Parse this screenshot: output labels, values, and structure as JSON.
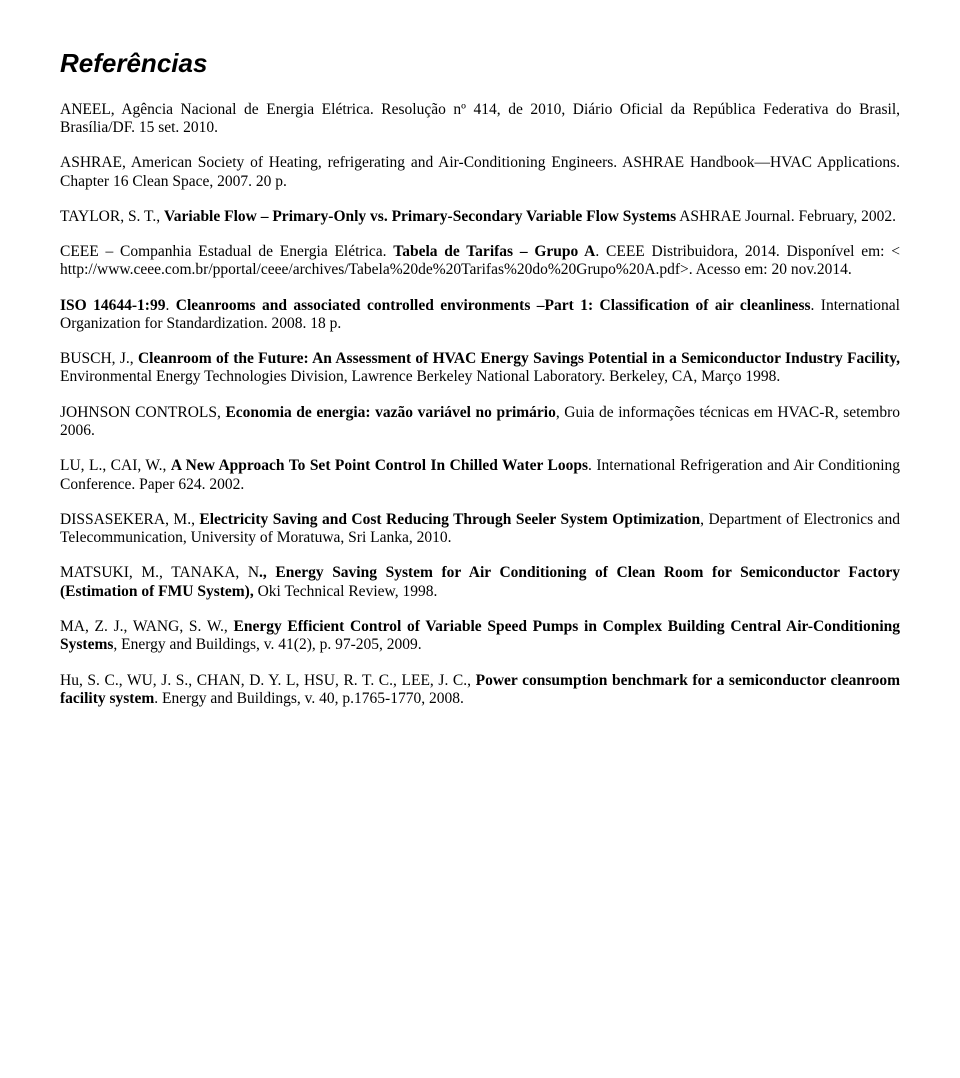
{
  "title": "Referências",
  "refs": [
    [
      {
        "t": "ANEEL, Agência Nacional de Energia Elétrica. Resolução nº 414, de 2010, Diário Oficial da República Federativa do Brasil, Brasília/DF. 15 set. 2010."
      }
    ],
    [
      {
        "t": "ASHRAE, American Society of Heating, refrigerating and Air-Conditioning Engineers. ASHRAE Handbook—HVAC Applications. Chapter 16 Clean Space, 2007. 20 p."
      }
    ],
    [
      {
        "t": "TAYLOR, S. T., "
      },
      {
        "t": "Variable Flow – Primary-Only vs. Primary-Secondary Variable Flow Systems",
        "b": true
      },
      {
        "t": " ASHRAE Journal. February, 2002."
      }
    ],
    [
      {
        "t": "CEEE – Companhia Estadual de Energia Elétrica. "
      },
      {
        "t": "Tabela de Tarifas – Grupo A",
        "b": true
      },
      {
        "t": ". CEEE Distribuidora, 2014. Disponível em: < http://www.ceee.com.br/pportal/ceee/archives/Tabela%20de%20Tarifas%20do%20Grupo%20A.pdf>. Acesso em: 20 nov.2014."
      }
    ],
    [
      {
        "t": "ISO 14644-1:99",
        "b": true
      },
      {
        "t": ". "
      },
      {
        "t": "Cleanrooms and associated controlled environments –Part 1: Classification of air cleanliness",
        "b": true
      },
      {
        "t": ". International Organization for Standardization. 2008. 18 p."
      }
    ],
    [
      {
        "t": "BUSCH, J., "
      },
      {
        "t": "Cleanroom of the Future: An Assessment of HVAC Energy Savings Potential in a Semiconductor Industry Facility,",
        "b": true
      },
      {
        "t": " Environmental Energy Technologies Division, Lawrence Berkeley National Laboratory. Berkeley, CA, Março 1998."
      }
    ],
    [
      {
        "t": "JOHNSON CONTROLS, "
      },
      {
        "t": "Economia de energia: vazão variável no primário",
        "b": true
      },
      {
        "t": ", Guia de informações técnicas em HVAC-R, setembro 2006."
      }
    ],
    [
      {
        "t": "LU, L., CAI, W., "
      },
      {
        "t": "A New Approach To Set Point Control In Chilled Water Loops",
        "b": true
      },
      {
        "t": ". International Refrigeration and Air Conditioning Conference. Paper 624. 2002."
      }
    ],
    [
      {
        "t": "DISSASEKERA, M., "
      },
      {
        "t": "Electricity Saving and Cost Reducing Through Seeler System Optimization",
        "b": true
      },
      {
        "t": ", Department of Electronics and Telecommunication, University of Moratuwa, Sri Lanka, 2010."
      }
    ],
    [
      {
        "t": "MATSUKI, M., TANAKA, N"
      },
      {
        "t": "., Energy Saving System for Air Conditioning of Clean Room for Semiconductor Factory (Estimation of FMU System),",
        "b": true
      },
      {
        "t": " Oki Technical Review, 1998."
      }
    ],
    [
      {
        "t": "MA, Z. J., WANG, S. W., "
      },
      {
        "t": "Energy Efficient Control of Variable Speed Pumps in Complex Building Central Air-Conditioning Systems",
        "b": true
      },
      {
        "t": ", Energy and Buildings, v. 41(2), p. 97-205, 2009."
      }
    ],
    [
      {
        "t": "Hu, S. C., WU, J. S., CHAN, D. Y. L, HSU, R. T. C., LEE, J. C., "
      },
      {
        "t": "Power consumption benchmark for a semiconductor cleanroom facility system",
        "b": true
      },
      {
        "t": ". Energy and Buildings, v. 40, p.1765-1770, 2008."
      }
    ]
  ]
}
